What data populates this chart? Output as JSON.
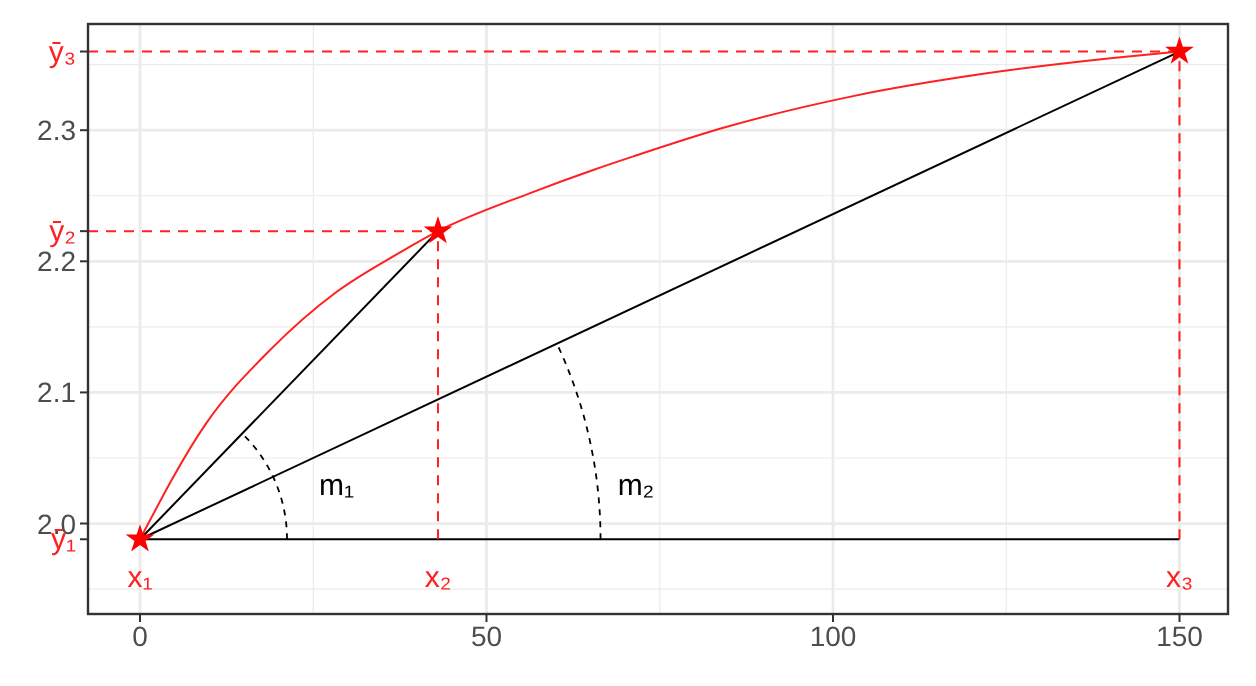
{
  "chart_data": {
    "type": "line",
    "xlim": [
      -7.5,
      157
    ],
    "xticks": [
      0,
      50,
      100,
      150
    ],
    "ylim": [
      1.931,
      2.381
    ],
    "yticks": [
      {
        "value": 1.988,
        "label": "ȳ₁"
      },
      {
        "value": 2.0,
        "label": "2.0"
      },
      {
        "value": 2.1,
        "label": "2.1"
      },
      {
        "value": 2.2,
        "label": "2.2"
      },
      {
        "value": 2.223,
        "label": "ȳ₂"
      },
      {
        "value": 2.3,
        "label": "2.3"
      },
      {
        "value": 2.36,
        "label": "ȳ₃"
      }
    ],
    "grid": true,
    "series": [
      {
        "color": "#ff2020",
        "marker": "none",
        "x": [
          0,
          9.5,
          18.9,
          28.2,
          37.6,
          43,
          56.3,
          65.6,
          71.2,
          84.3,
          102.9,
          121.7,
          140.4,
          150
        ],
        "values": [
          1.988,
          2.076,
          2.133,
          2.176,
          2.207,
          2.223,
          2.252,
          2.27,
          2.28,
          2.302,
          2.326,
          2.343,
          2.355,
          2.36
        ]
      },
      {
        "color": "#000000",
        "marker": "none",
        "x": [
          0,
          43
        ],
        "values": [
          1.988,
          2.223
        ]
      },
      {
        "color": "#000000",
        "marker": "none",
        "x": [
          0,
          150
        ],
        "values": [
          1.988,
          2.36
        ]
      },
      {
        "color": "#000000",
        "marker": "none",
        "x": [
          0,
          150
        ],
        "values": [
          1.988,
          1.988
        ]
      },
      {
        "color": "#ff2020",
        "marker": "none",
        "line_style": "dashed",
        "x": [
          -7.5,
          43
        ],
        "values": [
          2.223,
          2.223
        ]
      },
      {
        "color": "#ff2020",
        "marker": "none",
        "line_style": "dashed",
        "x": [
          43,
          43
        ],
        "values": [
          1.988,
          2.223
        ]
      },
      {
        "color": "#ff2020",
        "marker": "none",
        "line_style": "dashed",
        "x": [
          -7.5,
          150
        ],
        "values": [
          2.36,
          2.36
        ]
      },
      {
        "color": "#ff2020",
        "marker": "none",
        "line_style": "dashed",
        "x": [
          150,
          150
        ],
        "values": [
          1.988,
          2.36
        ]
      },
      {
        "type": "scatter",
        "color": "#ff0000",
        "marker": "star",
        "x": [
          0,
          43,
          150
        ],
        "values": [
          1.988,
          2.223,
          2.36
        ]
      }
    ],
    "annotations": [
      "x₁",
      "x₂",
      "x₃",
      "m₁",
      "m₂"
    ]
  }
}
